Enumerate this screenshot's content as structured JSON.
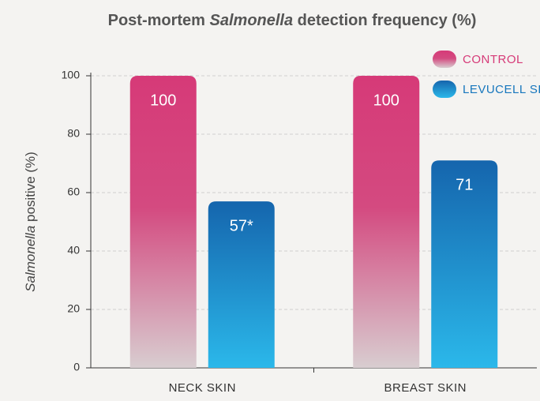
{
  "chart_data": {
    "type": "bar",
    "title": [
      "Post-mortem ",
      "Salmonella",
      " detection frequency (%)"
    ],
    "ylabel": [
      "Salmonella",
      " positive (%)"
    ],
    "categories": [
      "NECK SKIN",
      "BREAST SKIN"
    ],
    "series": [
      {
        "name": "CONTROL",
        "color": "#d63a78",
        "values": [
          100,
          100
        ]
      },
      {
        "name": "LEVUCELL SB",
        "color": "#1676bd",
        "values": [
          57,
          71
        ],
        "value_labels": [
          "57*",
          "71"
        ]
      }
    ],
    "ylim": [
      0,
      100
    ],
    "yticks": [
      0,
      20,
      40,
      60,
      80,
      100
    ],
    "grid": true,
    "legend": "top-right"
  }
}
